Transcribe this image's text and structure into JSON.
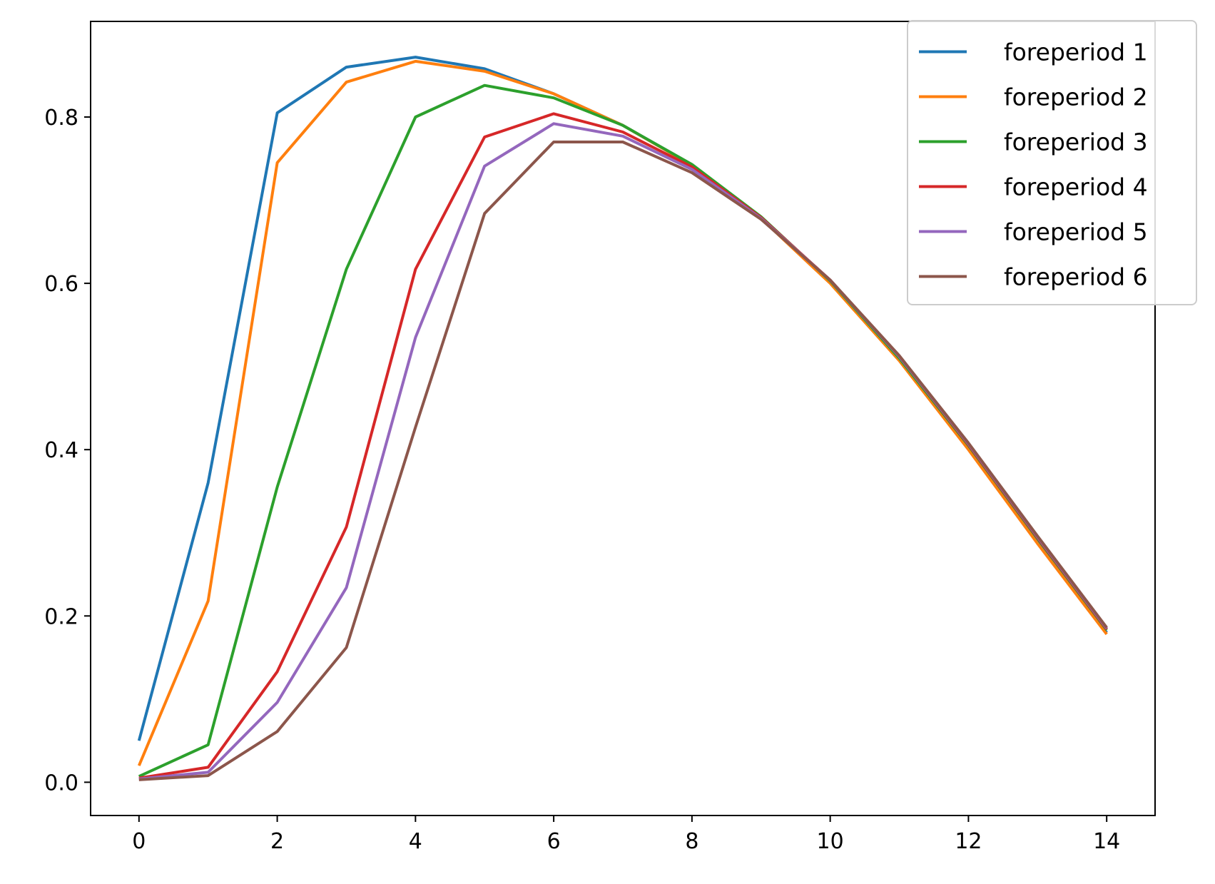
{
  "chart_data": {
    "type": "line",
    "title": "",
    "xlabel": "",
    "ylabel": "",
    "x": [
      0,
      1,
      2,
      3,
      4,
      5,
      6,
      7,
      8,
      9,
      10,
      11,
      12,
      13,
      14
    ],
    "xlim": [
      -0.7,
      14.7
    ],
    "ylim": [
      -0.04,
      0.915
    ],
    "xticks": [
      0,
      2,
      4,
      6,
      8,
      10,
      12,
      14
    ],
    "yticks": [
      0.0,
      0.2,
      0.4,
      0.6,
      0.8
    ],
    "xtick_labels": [
      "0",
      "2",
      "4",
      "6",
      "8",
      "10",
      "12",
      "14"
    ],
    "ytick_labels": [
      "0.0",
      "0.2",
      "0.4",
      "0.6",
      "0.8"
    ],
    "grid": false,
    "legend_position": "top-right",
    "series": [
      {
        "name": "foreperiod 1",
        "color": "#1f77b4",
        "values": [
          0.05,
          0.36,
          0.805,
          0.86,
          0.872,
          0.858,
          0.828,
          0.79,
          0.742,
          0.678,
          0.602,
          0.51,
          0.404,
          0.29,
          0.18
        ]
      },
      {
        "name": "foreperiod 2",
        "color": "#ff7f0e",
        "values": [
          0.02,
          0.218,
          0.745,
          0.842,
          0.867,
          0.855,
          0.828,
          0.79,
          0.742,
          0.678,
          0.6,
          0.507,
          0.4,
          0.287,
          0.178
        ]
      },
      {
        "name": "foreperiod 3",
        "color": "#2ca02c",
        "values": [
          0.007,
          0.045,
          0.355,
          0.617,
          0.8,
          0.838,
          0.823,
          0.79,
          0.743,
          0.68,
          0.603,
          0.51,
          0.405,
          0.293,
          0.183
        ]
      },
      {
        "name": "foreperiod 4",
        "color": "#d62728",
        "values": [
          0.005,
          0.018,
          0.133,
          0.307,
          0.617,
          0.776,
          0.804,
          0.782,
          0.74,
          0.679,
          0.604,
          0.512,
          0.406,
          0.294,
          0.184
        ]
      },
      {
        "name": "foreperiod 5",
        "color": "#9467bd",
        "values": [
          0.004,
          0.012,
          0.096,
          0.234,
          0.535,
          0.741,
          0.792,
          0.777,
          0.737,
          0.678,
          0.604,
          0.512,
          0.407,
          0.295,
          0.185
        ]
      },
      {
        "name": "foreperiod 6",
        "color": "#8c564b",
        "values": [
          0.003,
          0.008,
          0.061,
          0.162,
          0.427,
          0.684,
          0.77,
          0.77,
          0.733,
          0.677,
          0.604,
          0.513,
          0.408,
          0.296,
          0.186
        ]
      }
    ]
  }
}
